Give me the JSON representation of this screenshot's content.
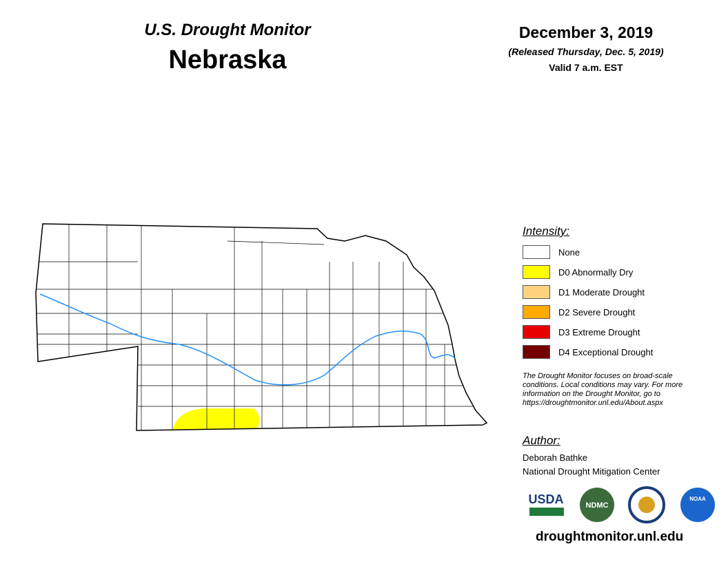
{
  "header": {
    "title": "U.S. Drought Monitor",
    "state": "Nebraska",
    "date": "December 3, 2019",
    "released": "(Released Thursday, Dec. 5, 2019)",
    "valid": "Valid 7 a.m. EST"
  },
  "legend": {
    "title": "Intensity:",
    "items": [
      {
        "label": "None",
        "color": "#ffffff"
      },
      {
        "label": "D0 Abnormally Dry",
        "color": "#ffff00"
      },
      {
        "label": "D1 Moderate Drought",
        "color": "#fcd37f"
      },
      {
        "label": "D2 Severe Drought",
        "color": "#ffaa00"
      },
      {
        "label": "D3 Extreme Drought",
        "color": "#e60000"
      },
      {
        "label": "D4 Exceptional Drought",
        "color": "#730000"
      }
    ]
  },
  "note": [
    "The Drought Monitor focuses on broad-scale",
    "conditions. Local conditions may vary. For more",
    "information on the Drought Monitor, go to",
    "https://droughtmonitor.unl.edu/About.aspx"
  ],
  "author": {
    "title": "Author:",
    "name": "Deborah Bathke",
    "org": "National Drought Mitigation Center"
  },
  "logos": [
    "USDA",
    "NDMC",
    "NOAA"
  ],
  "footer": "droughtmonitor.unl.edu"
}
